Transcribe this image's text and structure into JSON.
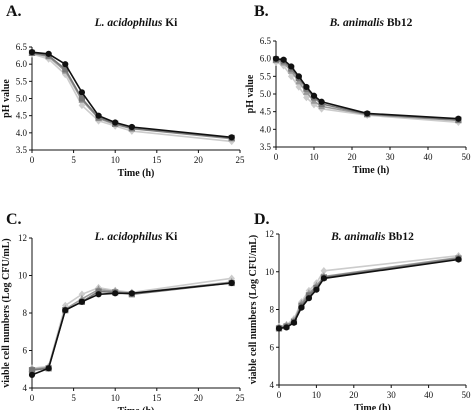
{
  "chart_data": [
    {
      "id": "A",
      "type": "line",
      "panel_label": "A.",
      "title": "L. acidophilus Ki",
      "title_parts": [
        "L. acidophilus",
        "Ki"
      ],
      "xlabel": "Time (h)",
      "ylabel": "pH value",
      "xlim": [
        0,
        25
      ],
      "ylim": [
        3.5,
        6.5
      ],
      "xticks": [
        0,
        5,
        10,
        15,
        20,
        25
      ],
      "yticks": [
        3.5,
        4.0,
        4.5,
        5.0,
        5.5,
        6.0,
        6.5
      ],
      "ytick_labels": [
        "3.5",
        "4.0",
        "4.5",
        "5.0",
        "5.5",
        "6.0",
        "6.5"
      ],
      "x": [
        0,
        2,
        4,
        6,
        8,
        10,
        12,
        24
      ],
      "series": [
        {
          "values": [
            6.35,
            6.3,
            6.0,
            5.18,
            4.5,
            4.3,
            4.17,
            3.87
          ],
          "color": "#111111",
          "marker": "circle"
        },
        {
          "values": [
            6.33,
            6.25,
            5.85,
            5.0,
            4.45,
            4.27,
            4.13,
            3.85
          ],
          "color": "#777777",
          "marker": "square"
        },
        {
          "values": [
            6.32,
            6.22,
            5.8,
            4.95,
            4.42,
            4.25,
            4.12,
            3.83
          ],
          "color": "#9a9a9a",
          "marker": "triangle"
        },
        {
          "values": [
            6.3,
            6.15,
            5.7,
            4.8,
            4.35,
            4.2,
            4.05,
            3.75
          ],
          "color": "#cccccc",
          "marker": "diamond"
        }
      ]
    },
    {
      "id": "B",
      "type": "line",
      "panel_label": "B.",
      "title": "B. animalis Bb12",
      "title_parts": [
        "B. animalis",
        "Bb12"
      ],
      "xlabel": "Time (h)",
      "ylabel": "pH value",
      "xlim": [
        0,
        50
      ],
      "ylim": [
        3.5,
        6.5
      ],
      "xticks": [
        0,
        10,
        20,
        30,
        40,
        50
      ],
      "yticks": [
        3.5,
        4.0,
        4.5,
        5.0,
        5.5,
        6.0,
        6.5
      ],
      "ytick_labels": [
        "3.5",
        "4.0",
        "4.5",
        "5.0",
        "5.5",
        "6.0",
        "6.5"
      ],
      "x": [
        0,
        2,
        4,
        6,
        8,
        10,
        12,
        24,
        48
      ],
      "series": [
        {
          "values": [
            6.0,
            5.97,
            5.78,
            5.5,
            5.2,
            4.95,
            4.78,
            4.45,
            4.3
          ],
          "color": "#111111",
          "marker": "circle"
        },
        {
          "values": [
            5.98,
            5.93,
            5.72,
            5.45,
            5.15,
            4.9,
            4.72,
            4.43,
            4.27
          ],
          "color": "#777777",
          "marker": "square"
        },
        {
          "values": [
            5.95,
            5.88,
            5.65,
            5.35,
            5.05,
            4.8,
            4.65,
            4.42,
            4.25
          ],
          "color": "#9a9a9a",
          "marker": "triangle"
        },
        {
          "values": [
            5.9,
            5.8,
            5.5,
            5.2,
            4.9,
            4.7,
            4.58,
            4.4,
            4.2
          ],
          "color": "#cccccc",
          "marker": "diamond"
        }
      ]
    },
    {
      "id": "C",
      "type": "line",
      "panel_label": "C.",
      "title": "L. acidophilus Ki",
      "title_parts": [
        "L. acidophilus",
        "Ki"
      ],
      "xlabel": "Time (h)",
      "ylabel": "viable cell numbers (Log CFU/mL)",
      "xlim": [
        0,
        25
      ],
      "ylim": [
        4,
        12
      ],
      "xticks": [
        0,
        5,
        10,
        15,
        20,
        25
      ],
      "yticks": [
        4,
        6,
        8,
        10,
        12
      ],
      "ytick_labels": [
        "4",
        "6",
        "8",
        "10",
        "12"
      ],
      "x": [
        0,
        2,
        4,
        6,
        8,
        10,
        12,
        24
      ],
      "series": [
        {
          "values": [
            4.7,
            5.05,
            8.15,
            8.6,
            9.0,
            9.05,
            9.05,
            9.6
          ],
          "color": "#111111",
          "marker": "circle"
        },
        {
          "values": [
            4.95,
            5.05,
            8.15,
            8.6,
            9.15,
            9.1,
            9.0,
            9.6
          ],
          "color": "#777777",
          "marker": "square"
        },
        {
          "values": [
            5.0,
            5.1,
            8.2,
            8.75,
            9.25,
            9.15,
            9.05,
            9.65
          ],
          "color": "#9a9a9a",
          "marker": "triangle"
        },
        {
          "values": [
            5.05,
            5.15,
            8.4,
            9.0,
            9.35,
            9.2,
            9.1,
            9.85
          ],
          "color": "#cccccc",
          "marker": "diamond"
        }
      ]
    },
    {
      "id": "D",
      "type": "line",
      "panel_label": "D.",
      "title": "B. animalis Bb12",
      "title_parts": [
        "B. animalis",
        "Bb12"
      ],
      "xlabel": "Time (h)",
      "ylabel": "viable cell numbers (Log CFU/mL)",
      "xlim": [
        0,
        50
      ],
      "ylim": [
        4,
        12
      ],
      "xticks": [
        0,
        10,
        20,
        30,
        40,
        50
      ],
      "yticks": [
        4,
        6,
        8,
        10,
        12
      ],
      "ytick_labels": [
        "4",
        "6",
        "8",
        "10",
        "12"
      ],
      "x": [
        0,
        2,
        4,
        6,
        8,
        10,
        12,
        48
      ],
      "series": [
        {
          "values": [
            7.0,
            7.05,
            7.3,
            8.1,
            8.6,
            9.05,
            9.65,
            10.65
          ],
          "color": "#111111",
          "marker": "circle"
        },
        {
          "values": [
            7.0,
            7.1,
            7.35,
            8.2,
            8.75,
            9.15,
            9.7,
            10.7
          ],
          "color": "#777777",
          "marker": "square"
        },
        {
          "values": [
            7.05,
            7.15,
            7.4,
            8.3,
            8.85,
            9.25,
            9.75,
            10.75
          ],
          "color": "#9a9a9a",
          "marker": "triangle"
        },
        {
          "values": [
            7.1,
            7.2,
            7.5,
            8.4,
            9.0,
            9.4,
            10.05,
            10.85
          ],
          "color": "#cccccc",
          "marker": "diamond"
        }
      ]
    }
  ]
}
